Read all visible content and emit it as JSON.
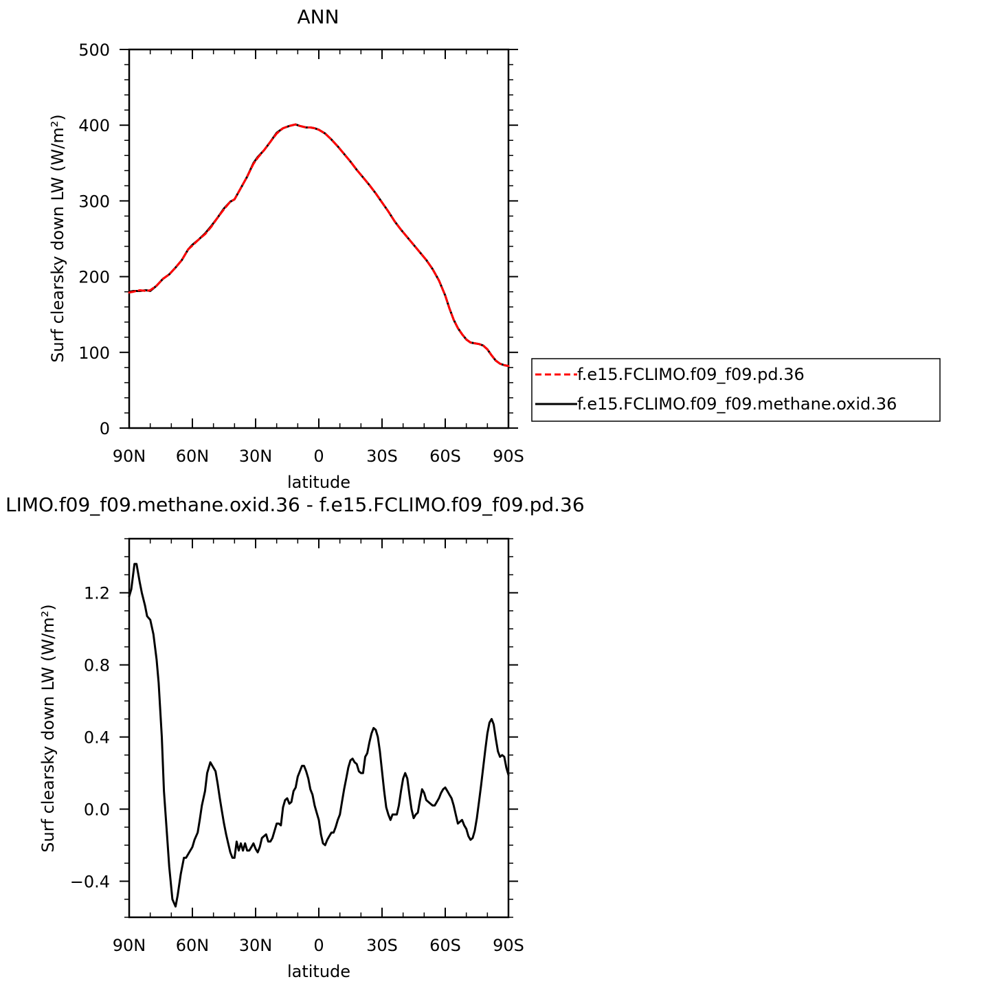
{
  "chart_data": [
    {
      "type": "line",
      "title": "ANN",
      "xlabel": "latitude",
      "ylabel": "Surf clearsky down LW (W/m²)",
      "ylim": [
        0,
        500
      ],
      "xlim": [
        90,
        -90
      ],
      "x_ticks": [
        {
          "v": 90,
          "label": "90N"
        },
        {
          "v": 60,
          "label": "60N"
        },
        {
          "v": 30,
          "label": "30N"
        },
        {
          "v": 0,
          "label": "0"
        },
        {
          "v": -30,
          "label": "30S"
        },
        {
          "v": -60,
          "label": "60S"
        },
        {
          "v": -90,
          "label": "90S"
        }
      ],
      "y_ticks": [
        {
          "v": 0,
          "label": "0"
        },
        {
          "v": 100,
          "label": "100"
        },
        {
          "v": 200,
          "label": "200"
        },
        {
          "v": 300,
          "label": "300"
        },
        {
          "v": 400,
          "label": "400"
        },
        {
          "v": 500,
          "label": "500"
        }
      ],
      "legend": {
        "placement": "right",
        "entries": [
          {
            "name": "f.e15.FCLIMO.f09_f09.pd.36",
            "color": "#ff0000",
            "dash": "dashed"
          },
          {
            "name": "f.e15.FCLIMO.f09_f09.methane.oxid.36",
            "color": "#000000",
            "dash": "solid"
          }
        ]
      },
      "x": [
        90,
        88,
        85,
        82,
        80,
        77,
        74,
        71,
        68,
        65,
        62,
        60,
        57,
        54,
        51,
        48,
        45,
        42,
        40,
        37,
        34,
        31,
        29,
        26,
        23,
        20,
        17,
        14,
        11,
        9,
        6,
        4,
        2,
        0,
        -3,
        -6,
        -9,
        -12,
        -15,
        -18,
        -21,
        -24,
        -27,
        -30,
        -33,
        -36,
        -39,
        -42,
        -45,
        -48,
        -51,
        -54,
        -57,
        -60,
        -62,
        -64,
        -66,
        -68,
        -70,
        -72,
        -74,
        -76,
        -78,
        -80,
        -82,
        -84,
        -86,
        -88,
        -90
      ],
      "series": [
        {
          "name": "f.e15.FCLIMO.f09_f09.pd.36",
          "color": "#ff0000",
          "dash": "dashed",
          "values": [
            179,
            180,
            182,
            181,
            182,
            188,
            197,
            203,
            212,
            222,
            236,
            241,
            249,
            256,
            266,
            278,
            289,
            299,
            302,
            317,
            332,
            349,
            357,
            367,
            378,
            389,
            396,
            399,
            401,
            399,
            397,
            397,
            396,
            394,
            389,
            381,
            372,
            362,
            352,
            341,
            331,
            321,
            310,
            298,
            286,
            273,
            262,
            252,
            242,
            232,
            222,
            210,
            195,
            175,
            158,
            143,
            132,
            124,
            117,
            113,
            112,
            111,
            109,
            104,
            96,
            89,
            85,
            83,
            82
          ]
        },
        {
          "name": "f.e15.FCLIMO.f09_f09.methane.oxid.36",
          "color": "#000000",
          "dash": "solid",
          "values": [
            180,
            181,
            181,
            182,
            181,
            188,
            197,
            203,
            212,
            222,
            236,
            242,
            249,
            257,
            267,
            278,
            290,
            299,
            302,
            317,
            332,
            350,
            358,
            367,
            378,
            390,
            396,
            399,
            401,
            399,
            397,
            397,
            396,
            394,
            389,
            381,
            372,
            362,
            352,
            341,
            331,
            321,
            310,
            298,
            286,
            273,
            262,
            252,
            242,
            232,
            222,
            210,
            195,
            175,
            158,
            143,
            132,
            124,
            117,
            113,
            112,
            111,
            109,
            104,
            96,
            89,
            85,
            83,
            82
          ]
        }
      ]
    },
    {
      "type": "line",
      "title": "LIMO.f09_f09.methane.oxid.36 - f.e15.FCLIMO.f09_f09.pd.36",
      "xlabel": "latitude",
      "ylabel": "Surf clearsky down LW (W/m²)",
      "ylim": [
        -0.6,
        1.5
      ],
      "xlim": [
        90,
        -90
      ],
      "x_ticks": [
        {
          "v": 90,
          "label": "90N"
        },
        {
          "v": 60,
          "label": "60N"
        },
        {
          "v": 30,
          "label": "30N"
        },
        {
          "v": 0,
          "label": "0"
        },
        {
          "v": -30,
          "label": "30S"
        },
        {
          "v": -60,
          "label": "60S"
        },
        {
          "v": -90,
          "label": "90S"
        }
      ],
      "y_ticks": [
        {
          "v": -0.4,
          "label": "−0.4"
        },
        {
          "v": 0.0,
          "label": "0.0"
        },
        {
          "v": 0.4,
          "label": "0.4"
        },
        {
          "v": 0.8,
          "label": "0.8"
        },
        {
          "v": 1.2,
          "label": "1.2"
        }
      ],
      "x": [
        90,
        89,
        87.5,
        86.5,
        85,
        84,
        82.5,
        81.5,
        80,
        78.5,
        77,
        76,
        74.5,
        73.5,
        72,
        71,
        69.5,
        68,
        67,
        65.5,
        64,
        63,
        61.5,
        60,
        59,
        57.5,
        56.5,
        55.5,
        54,
        53,
        51.5,
        50.5,
        49,
        48,
        47,
        46,
        45,
        44,
        43,
        42,
        41,
        40,
        39,
        38,
        37,
        36,
        35,
        34,
        33,
        32,
        31,
        30,
        29,
        28,
        27,
        26,
        25,
        24,
        23,
        22,
        21,
        20,
        19,
        18,
        17,
        16,
        15,
        14,
        13,
        12,
        11,
        10,
        9,
        8,
        7,
        6,
        5,
        4,
        3,
        2,
        1,
        0,
        -1,
        -2,
        -3,
        -4,
        -5,
        -6,
        -7,
        -8,
        -9,
        -10,
        -11,
        -12,
        -13,
        -14,
        -15,
        -16,
        -17,
        -18,
        -19,
        -20,
        -21,
        -22,
        -23,
        -24,
        -25,
        -26,
        -27,
        -28,
        -29,
        -30,
        -31,
        -32,
        -33,
        -34,
        -35,
        -36,
        -37,
        -38,
        -39,
        -40,
        -41,
        -42,
        -43,
        -44,
        -45,
        -46,
        -47,
        -48,
        -49,
        -50,
        -51,
        -52,
        -53,
        -54,
        -55,
        -56,
        -57,
        -58,
        -59,
        -60,
        -61,
        -62,
        -63,
        -64,
        -65,
        -66,
        -67,
        -68,
        -69,
        -70,
        -71,
        -72,
        -73,
        -74,
        -75,
        -76,
        -77,
        -78,
        -79,
        -80,
        -81,
        -82,
        -83,
        -84,
        -85,
        -86,
        -87,
        -88,
        -89,
        -90
      ],
      "series": [
        {
          "name": "",
          "color": "#000000",
          "dash": "solid",
          "values": [
            1.18,
            1.22,
            1.36,
            1.36,
            1.26,
            1.2,
            1.13,
            1.07,
            1.05,
            0.97,
            0.83,
            0.7,
            0.4,
            0.1,
            -0.15,
            -0.32,
            -0.5,
            -0.54,
            -0.48,
            -0.36,
            -0.27,
            -0.27,
            -0.24,
            -0.21,
            -0.17,
            -0.13,
            -0.06,
            0.02,
            0.1,
            0.2,
            0.26,
            0.24,
            0.21,
            0.14,
            0.06,
            -0.01,
            -0.08,
            -0.14,
            -0.19,
            -0.24,
            -0.27,
            -0.27,
            -0.18,
            -0.23,
            -0.19,
            -0.23,
            -0.19,
            -0.23,
            -0.23,
            -0.21,
            -0.19,
            -0.22,
            -0.24,
            -0.21,
            -0.16,
            -0.15,
            -0.14,
            -0.18,
            -0.18,
            -0.16,
            -0.12,
            -0.08,
            -0.08,
            -0.09,
            0.01,
            0.05,
            0.06,
            0.03,
            0.04,
            0.1,
            0.12,
            0.18,
            0.21,
            0.24,
            0.24,
            0.21,
            0.17,
            0.11,
            0.08,
            0.02,
            -0.02,
            -0.06,
            -0.14,
            -0.19,
            -0.2,
            -0.17,
            -0.15,
            -0.13,
            -0.13,
            -0.1,
            -0.06,
            -0.03,
            0.04,
            0.11,
            0.17,
            0.23,
            0.27,
            0.28,
            0.26,
            0.25,
            0.21,
            0.2,
            0.2,
            0.29,
            0.31,
            0.37,
            0.42,
            0.45,
            0.44,
            0.4,
            0.32,
            0.21,
            0.1,
            0.01,
            -0.03,
            -0.06,
            -0.03,
            -0.03,
            -0.03,
            0.02,
            0.1,
            0.17,
            0.2,
            0.17,
            0.08,
            0.0,
            -0.05,
            -0.03,
            -0.02,
            0.05,
            0.11,
            0.09,
            0.05,
            0.04,
            0.03,
            0.02,
            0.02,
            0.04,
            0.06,
            0.09,
            0.11,
            0.12,
            0.1,
            0.08,
            0.06,
            0.02,
            -0.03,
            -0.08,
            -0.07,
            -0.06,
            -0.09,
            -0.11,
            -0.15,
            -0.17,
            -0.16,
            -0.12,
            -0.05,
            0.04,
            0.13,
            0.23,
            0.33,
            0.42,
            0.48,
            0.5,
            0.47,
            0.39,
            0.32,
            0.29,
            0.3,
            0.29,
            0.23,
            0.19
          ]
        }
      ]
    }
  ]
}
